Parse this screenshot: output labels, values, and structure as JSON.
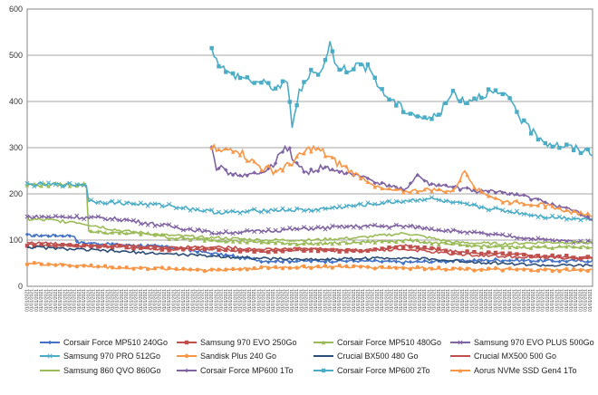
{
  "chart_data": {
    "type": "line",
    "title": "",
    "xlabel": "",
    "ylabel": "",
    "ylim": [
      0,
      600
    ],
    "yticks": [
      0,
      100,
      200,
      300,
      400,
      500,
      600
    ],
    "grid": true,
    "legend_position": "bottom",
    "x_count": 240,
    "x_tick_label": "01/01/2021",
    "series": [
      {
        "name": "Corsair Force MP510 240Go",
        "color": "#4472C4",
        "marker": "diamond",
        "start": 0,
        "points": [
          [
            0,
            110
          ],
          [
            10,
            110
          ],
          [
            20,
            110
          ],
          [
            21,
            95
          ],
          [
            40,
            90
          ],
          [
            60,
            85
          ],
          [
            80,
            70
          ],
          [
            100,
            55
          ],
          [
            120,
            55
          ],
          [
            140,
            55
          ],
          [
            160,
            52
          ],
          [
            180,
            55
          ],
          [
            200,
            57
          ],
          [
            220,
            55
          ],
          [
            239,
            55
          ]
        ]
      },
      {
        "name": "Samsung 970 EVO 250Go",
        "color": "#C0504D",
        "marker": "square",
        "start": 0,
        "points": [
          [
            0,
            90
          ],
          [
            20,
            88
          ],
          [
            40,
            85
          ],
          [
            60,
            80
          ],
          [
            80,
            80
          ],
          [
            100,
            75
          ],
          [
            120,
            80
          ],
          [
            140,
            75
          ],
          [
            160,
            88
          ],
          [
            180,
            75
          ],
          [
            200,
            70
          ],
          [
            220,
            65
          ],
          [
            239,
            62
          ]
        ]
      },
      {
        "name": "Corsair Force MP510 480Go",
        "color": "#9BBB59",
        "marker": "triangle",
        "start": 0,
        "points": [
          [
            0,
            220
          ],
          [
            5,
            220
          ],
          [
            10,
            220
          ],
          [
            20,
            220
          ],
          [
            25,
            220
          ],
          [
            26,
            120
          ],
          [
            35,
            115
          ],
          [
            45,
            115
          ],
          [
            55,
            112
          ],
          [
            60,
            105
          ],
          [
            80,
            100
          ],
          [
            100,
            95
          ],
          [
            120,
            92
          ],
          [
            140,
            95
          ],
          [
            160,
            100
          ],
          [
            180,
            90
          ],
          [
            200,
            85
          ],
          [
            220,
            85
          ],
          [
            239,
            85
          ]
        ]
      },
      {
        "name": "Samsung 970 EVO PLUS 500Go",
        "color": "#8064A2",
        "marker": "x",
        "start": 0,
        "points": [
          [
            0,
            150
          ],
          [
            20,
            150
          ],
          [
            40,
            145
          ],
          [
            60,
            130
          ],
          [
            80,
            115
          ],
          [
            100,
            120
          ],
          [
            120,
            125
          ],
          [
            140,
            130
          ],
          [
            160,
            130
          ],
          [
            180,
            120
          ],
          [
            200,
            110
          ],
          [
            220,
            100
          ],
          [
            239,
            95
          ]
        ]
      },
      {
        "name": "Samsung 970 PRO 512Go",
        "color": "#4BACC6",
        "marker": "x",
        "start": 0,
        "points": [
          [
            0,
            220
          ],
          [
            10,
            220
          ],
          [
            20,
            220
          ],
          [
            25,
            220
          ],
          [
            26,
            185
          ],
          [
            40,
            180
          ],
          [
            60,
            175
          ],
          [
            80,
            160
          ],
          [
            90,
            160
          ],
          [
            100,
            165
          ],
          [
            120,
            165
          ],
          [
            140,
            175
          ],
          [
            160,
            185
          ],
          [
            170,
            190
          ],
          [
            180,
            180
          ],
          [
            200,
            165
          ],
          [
            220,
            150
          ],
          [
            239,
            145
          ]
        ]
      },
      {
        "name": "Sandisk Plus 240 Go",
        "color": "#F79646",
        "marker": "circle",
        "start": 0,
        "points": [
          [
            0,
            50
          ],
          [
            20,
            45
          ],
          [
            40,
            40
          ],
          [
            60,
            38
          ],
          [
            80,
            35
          ],
          [
            100,
            40
          ],
          [
            120,
            42
          ],
          [
            140,
            42
          ],
          [
            160,
            40
          ],
          [
            180,
            38
          ],
          [
            200,
            36
          ],
          [
            220,
            35
          ],
          [
            239,
            35
          ]
        ]
      },
      {
        "name": "Crucial BX500 480 Go",
        "color": "#2C4D75",
        "marker": "none",
        "start": 0,
        "points": [
          [
            0,
            85
          ],
          [
            20,
            80
          ],
          [
            40,
            75
          ],
          [
            60,
            70
          ],
          [
            80,
            65
          ],
          [
            100,
            60
          ],
          [
            120,
            58
          ],
          [
            140,
            60
          ],
          [
            160,
            62
          ],
          [
            180,
            55
          ],
          [
            200,
            50
          ],
          [
            220,
            45
          ],
          [
            239,
            45
          ]
        ]
      },
      {
        "name": "Crucial MX500 500 Go",
        "color": "#C0504D",
        "marker": "none",
        "start": 0,
        "points": [
          [
            0,
            95
          ],
          [
            20,
            90
          ],
          [
            40,
            88
          ],
          [
            60,
            85
          ],
          [
            80,
            85
          ],
          [
            100,
            80
          ],
          [
            120,
            82
          ],
          [
            140,
            78
          ],
          [
            160,
            80
          ],
          [
            180,
            70
          ],
          [
            200,
            65
          ],
          [
            220,
            62
          ],
          [
            239,
            60
          ]
        ]
      },
      {
        "name": "Samsung 860 QVO 860Go",
        "color": "#9BBB59",
        "marker": "none",
        "start": 0,
        "points": [
          [
            0,
            145
          ],
          [
            20,
            140
          ],
          [
            40,
            120
          ],
          [
            60,
            110
          ],
          [
            80,
            105
          ],
          [
            100,
            100
          ],
          [
            120,
            100
          ],
          [
            140,
            105
          ],
          [
            160,
            115
          ],
          [
            180,
            95
          ],
          [
            200,
            92
          ],
          [
            220,
            95
          ],
          [
            239,
            95
          ]
        ]
      },
      {
        "name": "Corsair Force MP600 1To",
        "color": "#8064A2",
        "marker": "diamond",
        "start": 78,
        "points": [
          [
            78,
            310
          ],
          [
            80,
            260
          ],
          [
            85,
            245
          ],
          [
            90,
            240
          ],
          [
            100,
            245
          ],
          [
            105,
            270
          ],
          [
            110,
            300
          ],
          [
            115,
            255
          ],
          [
            120,
            250
          ],
          [
            125,
            255
          ],
          [
            130,
            250
          ],
          [
            140,
            240
          ],
          [
            150,
            220
          ],
          [
            160,
            210
          ],
          [
            165,
            240
          ],
          [
            170,
            220
          ],
          [
            180,
            215
          ],
          [
            190,
            205
          ],
          [
            200,
            205
          ],
          [
            210,
            195
          ],
          [
            220,
            180
          ],
          [
            230,
            165
          ],
          [
            239,
            145
          ]
        ]
      },
      {
        "name": "Corsair Force MP600 2To",
        "color": "#4BACC6",
        "marker": "square",
        "start": 78,
        "points": [
          [
            78,
            520
          ],
          [
            80,
            490
          ],
          [
            85,
            460
          ],
          [
            90,
            455
          ],
          [
            95,
            445
          ],
          [
            100,
            440
          ],
          [
            105,
            430
          ],
          [
            110,
            440
          ],
          [
            112,
            350
          ],
          [
            115,
            420
          ],
          [
            120,
            460
          ],
          [
            125,
            470
          ],
          [
            128,
            530
          ],
          [
            130,
            480
          ],
          [
            135,
            470
          ],
          [
            140,
            480
          ],
          [
            145,
            470
          ],
          [
            150,
            420
          ],
          [
            160,
            380
          ],
          [
            170,
            360
          ],
          [
            175,
            380
          ],
          [
            180,
            420
          ],
          [
            185,
            400
          ],
          [
            190,
            410
          ],
          [
            195,
            420
          ],
          [
            200,
            415
          ],
          [
            205,
            400
          ],
          [
            210,
            350
          ],
          [
            215,
            330
          ],
          [
            220,
            310
          ],
          [
            225,
            305
          ],
          [
            230,
            300
          ],
          [
            239,
            290
          ]
        ]
      },
      {
        "name": "Aorus NVMe SSD Gen4 1To",
        "color": "#F79646",
        "marker": "triangle",
        "start": 78,
        "points": [
          [
            78,
            300
          ],
          [
            82,
            290
          ],
          [
            88,
            300
          ],
          [
            95,
            270
          ],
          [
            100,
            255
          ],
          [
            105,
            250
          ],
          [
            110,
            260
          ],
          [
            115,
            280
          ],
          [
            120,
            300
          ],
          [
            125,
            290
          ],
          [
            130,
            270
          ],
          [
            140,
            240
          ],
          [
            150,
            210
          ],
          [
            160,
            205
          ],
          [
            170,
            210
          ],
          [
            180,
            205
          ],
          [
            185,
            250
          ],
          [
            190,
            210
          ],
          [
            200,
            185
          ],
          [
            210,
            180
          ],
          [
            220,
            175
          ],
          [
            230,
            160
          ],
          [
            239,
            155
          ]
        ]
      }
    ]
  }
}
